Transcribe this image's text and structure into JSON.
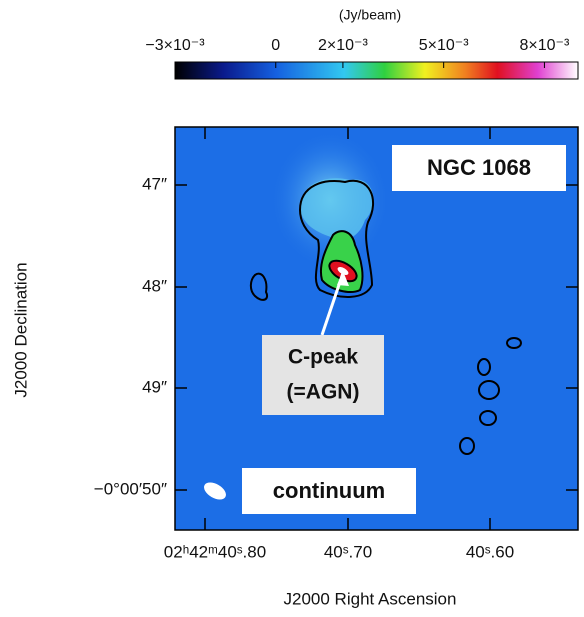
{
  "colorbar": {
    "unit": "(Jy/beam)",
    "range": [
      -0.003,
      0.009
    ],
    "ticks": [
      {
        "value": -0.003,
        "label": "−3×10⁻³"
      },
      0,
      {
        "value": 0.002,
        "label": "2×10⁻³"
      },
      {
        "value": 0.005,
        "label": "5×10⁻³"
      },
      {
        "value": 0.008,
        "label": "8×10⁻³"
      }
    ]
  },
  "panel": {
    "title": "NGC 1068",
    "annotation": [
      "C-peak",
      "(=AGN)"
    ],
    "legend": "continuum"
  },
  "axes": {
    "xlabel": "J2000 Right Ascension",
    "ylabel": "J2000 Declination",
    "xticks": [
      "02ʰ42ᵐ40ˢ.80",
      "40ˢ.70",
      "40ˢ.60"
    ],
    "yticks": [
      "47″",
      "48″",
      "49″",
      "−0°00′50″"
    ]
  }
}
